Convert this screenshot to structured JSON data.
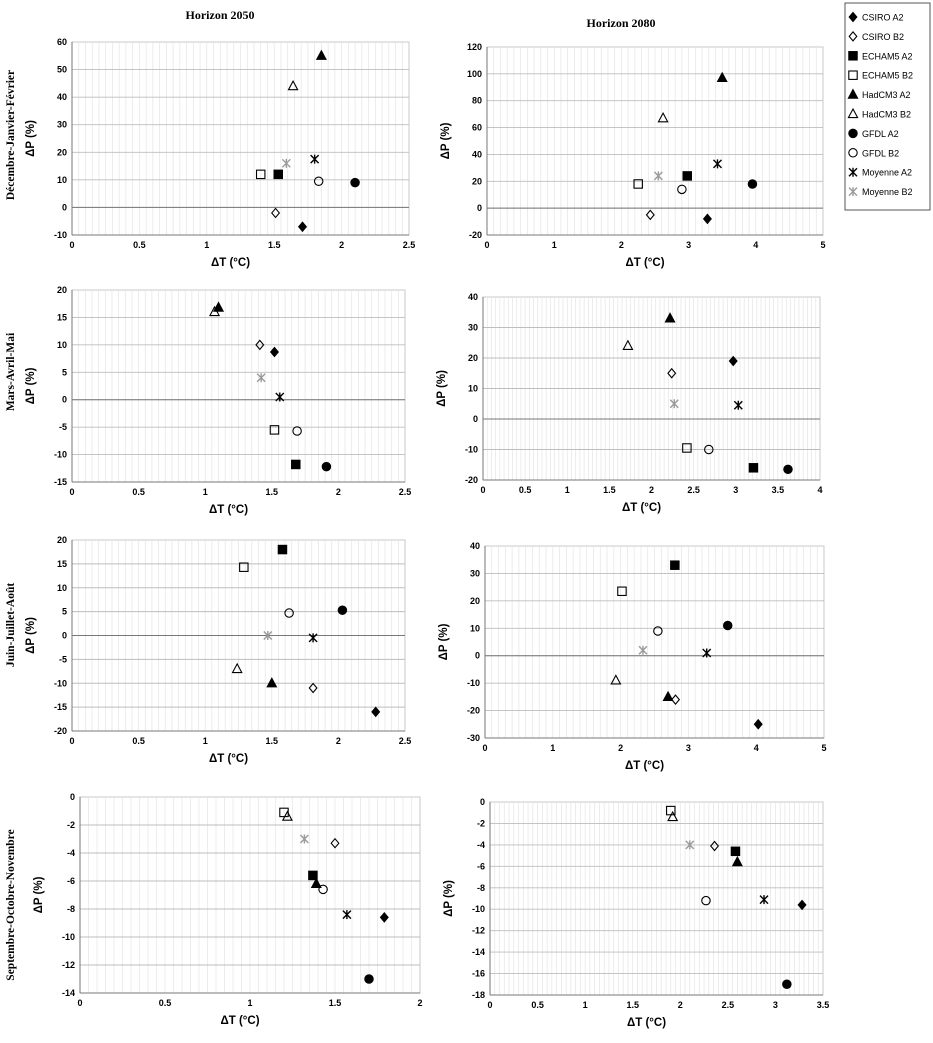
{
  "column_titles": [
    "Horizon 2050",
    "Horizon 2080"
  ],
  "row_labels": [
    "Décembre-Janvier-Février",
    "Mars-Avril-Mai",
    "Juin-Juillet-Août",
    "Septembre-Octobre-Novembre"
  ],
  "axis_labels": {
    "x": "ΔT (°C)",
    "y": "ΔP (%)"
  },
  "legend": [
    {
      "name": "CSIRO A2",
      "marker": "diamond",
      "fill": "#000000"
    },
    {
      "name": "CSIRO B2",
      "marker": "diamond",
      "fill": "none"
    },
    {
      "name": "ECHAM5 A2",
      "marker": "square",
      "fill": "#000000"
    },
    {
      "name": "ECHAM5 B2",
      "marker": "square",
      "fill": "none"
    },
    {
      "name": "HadCM3 A2",
      "marker": "triangle",
      "fill": "#000000"
    },
    {
      "name": "HadCM3 B2",
      "marker": "triangle",
      "fill": "none"
    },
    {
      "name": "GFDL A2",
      "marker": "circle",
      "fill": "#000000"
    },
    {
      "name": "GFDL B2",
      "marker": "circle",
      "fill": "none"
    },
    {
      "name": "Moyenne A2",
      "marker": "star",
      "fill": "#000000"
    },
    {
      "name": "Moyenne B2",
      "marker": "star",
      "fill": "#aaaaaa"
    }
  ],
  "chart_data": [
    {
      "type": "scatter",
      "row": 0,
      "col": 0,
      "xlabel": "ΔT (°C)",
      "ylabel": "ΔP (%)",
      "xlim": [
        0,
        2.5
      ],
      "xticks": [
        "0",
        "0.5",
        "1",
        "1.5",
        "2",
        "2.5"
      ],
      "ylim": [
        -10,
        60
      ],
      "yticks": [
        "-10",
        "0",
        "10",
        "20",
        "30",
        "40",
        "50",
        "60"
      ],
      "grid": true,
      "points": [
        [
          1.71,
          -7
        ],
        [
          1.51,
          -2
        ],
        [
          1.53,
          12
        ],
        [
          1.4,
          12
        ],
        [
          1.85,
          55
        ],
        [
          1.64,
          44
        ],
        [
          2.1,
          9
        ],
        [
          1.83,
          9.5
        ],
        [
          1.8,
          17.5
        ],
        [
          1.59,
          16
        ]
      ]
    },
    {
      "type": "scatter",
      "row": 0,
      "col": 1,
      "xlabel": "ΔT (°C)",
      "ylabel": "ΔP (%)",
      "xlim": [
        0,
        5
      ],
      "xticks": [
        "0",
        "1",
        "2",
        "3",
        "4",
        "5"
      ],
      "ylim": [
        -20,
        120
      ],
      "yticks": [
        "-20",
        "0",
        "20",
        "40",
        "60",
        "80",
        "100",
        "120"
      ],
      "grid": true,
      "points": [
        [
          3.28,
          -8
        ],
        [
          2.43,
          -5
        ],
        [
          2.98,
          24
        ],
        [
          2.25,
          18
        ],
        [
          3.5,
          97
        ],
        [
          2.62,
          67
        ],
        [
          3.95,
          18
        ],
        [
          2.9,
          14
        ],
        [
          3.43,
          33
        ],
        [
          2.55,
          24
        ]
      ]
    },
    {
      "type": "scatter",
      "row": 1,
      "col": 0,
      "xlabel": "ΔT (°C)",
      "ylabel": "ΔP (%)",
      "xlim": [
        0,
        2.5
      ],
      "xticks": [
        "0",
        "0.5",
        "1",
        "1.5",
        "2",
        "2.5"
      ],
      "ylim": [
        -15,
        20
      ],
      "yticks": [
        "-15",
        "-10",
        "-5",
        "0",
        "5",
        "10",
        "15",
        "20"
      ],
      "grid": true,
      "points": [
        [
          1.52,
          8.7
        ],
        [
          1.41,
          10
        ],
        [
          1.68,
          -11.8
        ],
        [
          1.52,
          -5.5
        ],
        [
          1.1,
          16.8
        ],
        [
          1.07,
          16
        ],
        [
          1.91,
          -12.2
        ],
        [
          1.69,
          -5.7
        ],
        [
          1.56,
          0.5
        ],
        [
          1.42,
          4
        ]
      ]
    },
    {
      "type": "scatter",
      "row": 1,
      "col": 1,
      "xlabel": "ΔT (°C)",
      "ylabel": "ΔP (%)",
      "xlim": [
        0,
        4
      ],
      "xticks": [
        "0",
        "0.5",
        "1",
        "1.5",
        "2",
        "2.5",
        "3",
        "3.5",
        "4"
      ],
      "ylim": [
        -20,
        40
      ],
      "yticks": [
        "-20",
        "-10",
        "0",
        "10",
        "20",
        "30",
        "40"
      ],
      "grid": true,
      "points": [
        [
          2.97,
          19
        ],
        [
          2.24,
          15
        ],
        [
          3.21,
          -16
        ],
        [
          2.42,
          -9.5
        ],
        [
          2.22,
          33
        ],
        [
          1.72,
          24
        ],
        [
          3.62,
          -16.5
        ],
        [
          2.68,
          -10
        ],
        [
          3.03,
          4.5
        ],
        [
          2.27,
          5
        ]
      ]
    },
    {
      "type": "scatter",
      "row": 2,
      "col": 0,
      "xlabel": "ΔT (°C)",
      "ylabel": "ΔP (%)",
      "xlim": [
        0,
        2.5
      ],
      "xticks": [
        "0",
        "0.5",
        "1",
        "1.5",
        "2",
        "2.5"
      ],
      "ylim": [
        -20,
        20
      ],
      "yticks": [
        "-20",
        "-15",
        "-10",
        "-5",
        "0",
        "5",
        "10",
        "15",
        "20"
      ],
      "grid": true,
      "points": [
        [
          2.28,
          -16
        ],
        [
          1.81,
          -11
        ],
        [
          1.58,
          18
        ],
        [
          1.29,
          14.3
        ],
        [
          1.5,
          -10
        ],
        [
          1.24,
          -7
        ],
        [
          2.03,
          5.3
        ],
        [
          1.63,
          4.7
        ],
        [
          1.81,
          -0.5
        ],
        [
          1.47,
          0
        ]
      ]
    },
    {
      "type": "scatter",
      "row": 2,
      "col": 1,
      "xlabel": "ΔT (°C)",
      "ylabel": "ΔP (%)",
      "xlim": [
        0,
        5
      ],
      "xticks": [
        "0",
        "1",
        "2",
        "3",
        "4",
        "5"
      ],
      "ylim": [
        -30,
        40
      ],
      "yticks": [
        "-30",
        "-20",
        "-10",
        "0",
        "10",
        "20",
        "30",
        "40"
      ],
      "grid": true,
      "points": [
        [
          4.03,
          -25
        ],
        [
          2.81,
          -16
        ],
        [
          2.8,
          33
        ],
        [
          2.02,
          23.5
        ],
        [
          2.7,
          -15
        ],
        [
          1.93,
          -9
        ],
        [
          3.58,
          11
        ],
        [
          2.55,
          9
        ],
        [
          3.27,
          1
        ],
        [
          2.33,
          2
        ]
      ]
    },
    {
      "type": "scatter",
      "row": 3,
      "col": 0,
      "xlabel": "ΔT (°C)",
      "ylabel": "ΔP (%)",
      "xlim": [
        0,
        2
      ],
      "xticks": [
        "0",
        "0.5",
        "1",
        "1.5",
        "2"
      ],
      "ylim": [
        -14,
        0
      ],
      "yticks": [
        "-14",
        "-12",
        "-10",
        "-8",
        "-6",
        "-4",
        "-2",
        "0"
      ],
      "grid": true,
      "points": [
        [
          1.79,
          -8.6
        ],
        [
          1.5,
          -3.3
        ],
        [
          1.37,
          -5.6
        ],
        [
          1.2,
          -1.1
        ],
        [
          1.39,
          -6.2
        ],
        [
          1.22,
          -1.4
        ],
        [
          1.7,
          -13
        ],
        [
          1.43,
          -6.6
        ],
        [
          1.57,
          -8.4
        ],
        [
          1.32,
          -3
        ]
      ]
    },
    {
      "type": "scatter",
      "row": 3,
      "col": 1,
      "xlabel": "ΔT (°C)",
      "ylabel": "ΔP (%)",
      "xlim": [
        0,
        3.5
      ],
      "xticks": [
        "0",
        "0.5",
        "1",
        "1.5",
        "2",
        "2.5",
        "3",
        "3.5"
      ],
      "ylim": [
        -18,
        0
      ],
      "yticks": [
        "-18",
        "-16",
        "-14",
        "-12",
        "-10",
        "-8",
        "-6",
        "-4",
        "-2",
        "0"
      ],
      "grid": true,
      "points": [
        [
          3.28,
          -9.6
        ],
        [
          2.36,
          -4.1
        ],
        [
          2.58,
          -4.6
        ],
        [
          1.9,
          -0.8
        ],
        [
          2.6,
          -5.6
        ],
        [
          1.92,
          -1.4
        ],
        [
          3.12,
          -17
        ],
        [
          2.27,
          -9.2
        ],
        [
          2.88,
          -9.1
        ],
        [
          2.1,
          -4
        ]
      ]
    }
  ]
}
